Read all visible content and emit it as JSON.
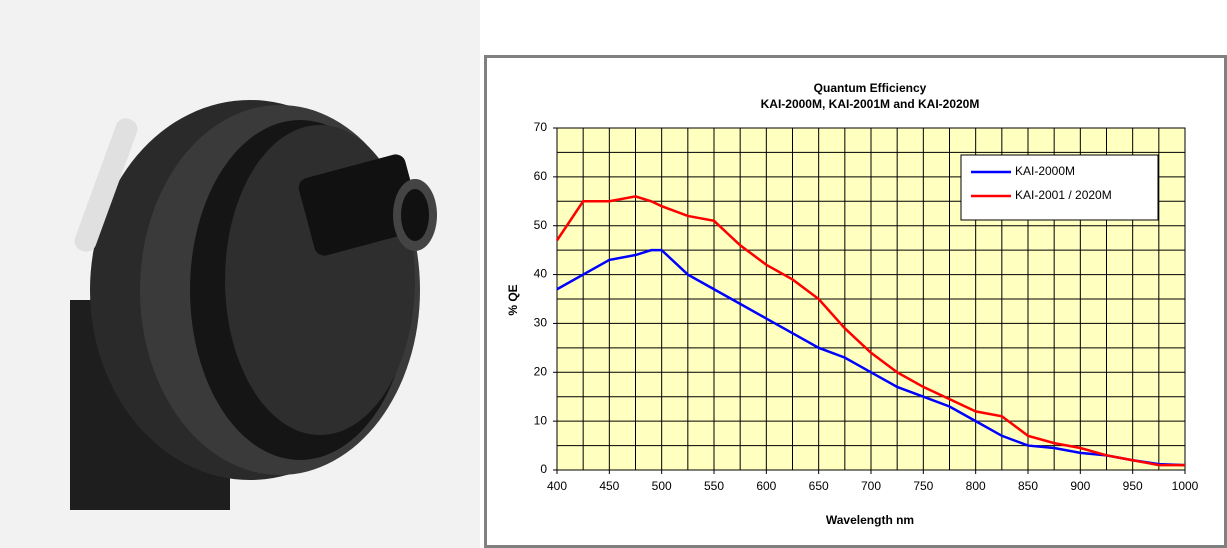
{
  "chart_data": {
    "type": "line",
    "title": "Quantum Efficiency",
    "subtitle": "KAI-2000M, KAI-2001M and KAI-2020M",
    "x_label": "Wavelength nm",
    "y_label": "% QE",
    "x": [
      400,
      425,
      450,
      475,
      490,
      500,
      525,
      550,
      575,
      600,
      625,
      650,
      675,
      700,
      725,
      750,
      775,
      800,
      825,
      850,
      875,
      900,
      925,
      950,
      975,
      1000
    ],
    "series": [
      {
        "name": "KAI-2000M",
        "color": "#0000ff",
        "values": [
          37,
          40,
          43,
          44,
          45,
          45,
          40,
          37,
          34,
          31,
          28,
          25,
          23,
          20,
          17,
          15,
          13,
          10,
          7,
          5,
          4.5,
          3.5,
          3,
          2,
          1.2,
          1
        ]
      },
      {
        "name": "KAI-2001 / 2020M",
        "color": "#ff0000",
        "values": [
          47,
          55,
          55,
          56,
          55,
          54,
          52,
          51,
          46,
          42,
          39,
          35,
          29,
          24,
          20,
          17,
          14.5,
          12,
          11,
          7,
          5.5,
          4.5,
          3,
          2,
          1,
          1
        ]
      }
    ],
    "xlim": [
      400,
      1000
    ],
    "xticks": [
      400,
      450,
      500,
      550,
      600,
      650,
      700,
      750,
      800,
      850,
      900,
      950,
      1000
    ],
    "ylim": [
      0,
      70
    ],
    "yticks": [
      0,
      10,
      20,
      30,
      40,
      50,
      60,
      70
    ],
    "grid": true,
    "legend": "upper right",
    "plot_background": "#ffffc0"
  }
}
